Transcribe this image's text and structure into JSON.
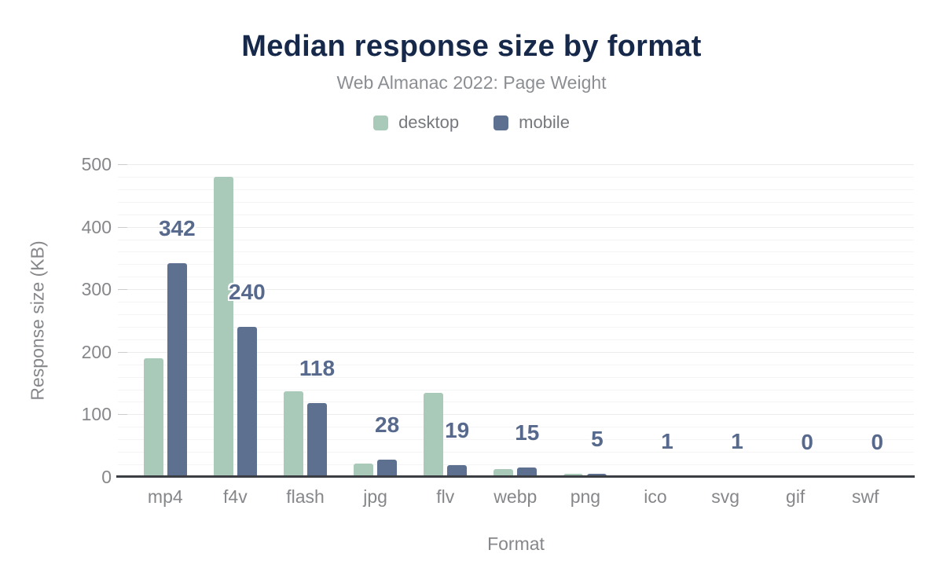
{
  "header": {
    "title": "Median response size by format",
    "subtitle": "Web Almanac 2022: Page Weight"
  },
  "chart_data": {
    "type": "bar",
    "title": "Median response size by format",
    "subtitle": "Web Almanac 2022: Page Weight",
    "xlabel": "Format",
    "ylabel": "Response size (KB)",
    "categories": [
      "mp4",
      "f4v",
      "flash",
      "jpg",
      "flv",
      "webp",
      "png",
      "ico",
      "svg",
      "gif",
      "swf"
    ],
    "series": [
      {
        "name": "desktop",
        "color": "#a9cab8",
        "values": [
          190,
          480,
          137,
          21,
          134,
          12,
          5,
          1,
          1,
          0,
          0
        ]
      },
      {
        "name": "mobile",
        "color": "#5e7090",
        "values": [
          342,
          240,
          118,
          28,
          19,
          15,
          5,
          1,
          1,
          0,
          0
        ]
      }
    ],
    "data_labels": {
      "on_series": "mobile",
      "text": [
        "342",
        "240",
        "118",
        "28",
        "19",
        "15",
        "5",
        "1",
        "1",
        "0",
        "0"
      ]
    },
    "ylim": [
      0,
      500
    ],
    "yticks": [
      0,
      100,
      200,
      300,
      400,
      500
    ],
    "minor_grid_step": 20,
    "major_grid_step": 100,
    "grid": "horizontal",
    "legend_position": "top"
  },
  "colors": {
    "title": "#17294a",
    "subtitle": "#8b8e92",
    "axis_text": "#85878a",
    "legend_text": "#75787c",
    "data_label": "#57698c",
    "axis_line": "#3b3e42",
    "gridline_minor": "#f4f4f4",
    "gridline_major": "#ececec",
    "background": "#ffffff"
  }
}
